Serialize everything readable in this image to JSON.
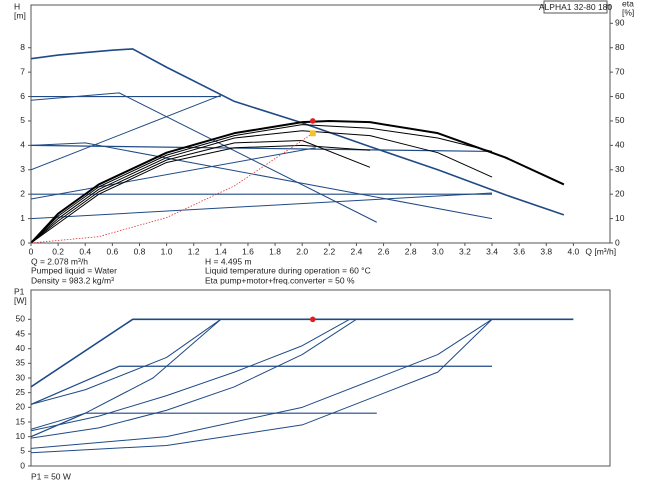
{
  "chart_data": [
    {
      "type": "line",
      "title": "ALPHA1 32-80 180",
      "ylabel": "H",
      "yunit": "[m]",
      "y2label": "eta",
      "y2unit": "[%]",
      "xlabel": "Q [m³/h]",
      "xlim": [
        0,
        4.27
      ],
      "ylim": [
        0,
        9.75
      ],
      "y2lim": [
        0,
        97.5
      ],
      "xticks": [
        0,
        0.2,
        0.4,
        0.6,
        0.8,
        {
          "value": 1,
          "label": "1.0"
        },
        1.2,
        1.4,
        1.6,
        1.8,
        {
          "value": 2,
          "label": "2.0"
        },
        2.2,
        2.4,
        2.6,
        2.8,
        {
          "value": 3,
          "label": "3.0"
        },
        3.2,
        3.4,
        3.6,
        3.8,
        {
          "value": 4,
          "label": "4.0"
        }
      ],
      "yticks": [
        0,
        1,
        2,
        3,
        4,
        5,
        6,
        7,
        8
      ],
      "y2ticks": [
        0,
        10,
        20,
        30,
        40,
        50,
        60,
        70,
        80,
        90
      ],
      "grid": false,
      "series": [
        {
          "color": "#1f4a86",
          "width": 1.6,
          "x": [
            0,
            0.2,
            0.4,
            0.6,
            0.75,
            1.0,
            1.5,
            2.0,
            2.5,
            3.0,
            3.5,
            3.93
          ],
          "values": [
            7.55,
            7.7,
            7.8,
            7.9,
            7.95,
            7.2,
            5.8,
            4.92,
            3.95,
            3.0,
            1.97,
            1.15
          ]
        },
        {
          "color": "#1f4a86",
          "width": 1.2,
          "x": [
            0,
            1.4
          ],
          "values": [
            6,
            6
          ]
        },
        {
          "color": "#1f4a86",
          "width": 1,
          "x": [
            0,
            0.65,
            2.55
          ],
          "values": [
            5.85,
            6.15,
            0.85
          ]
        },
        {
          "color": "#1f4a86",
          "width": 1,
          "x": [
            0,
            1.4
          ],
          "values": [
            3.0,
            6.05
          ]
        },
        {
          "color": "#1f4a86",
          "width": 1.2,
          "x": [
            0,
            3.4
          ],
          "values": [
            4.0,
            3.75
          ]
        },
        {
          "color": "#1f4a86",
          "width": 1,
          "x": [
            0,
            0.4,
            3.4
          ],
          "values": [
            4.0,
            4.1,
            1.0
          ]
        },
        {
          "color": "#1f4a86",
          "width": 1,
          "x": [
            0,
            2.1
          ],
          "values": [
            1.8,
            3.9
          ]
        },
        {
          "color": "#1f4a86",
          "width": 1.2,
          "x": [
            0,
            3.4
          ],
          "values": [
            2.0,
            2.0
          ]
        },
        {
          "color": "#1f4a86",
          "width": 1,
          "x": [
            0,
            3.4
          ],
          "values": [
            1.0,
            2.05
          ]
        },
        {
          "color": "#000000",
          "width": 2,
          "axis": "y2",
          "x": [
            0,
            0.2,
            0.5,
            1.0,
            1.5,
            2.0,
            2.2,
            2.5,
            3.0,
            3.5,
            3.93
          ],
          "values": [
            0,
            12,
            24,
            37,
            45,
            49.5,
            50,
            49.5,
            45,
            35,
            24
          ]
        },
        {
          "color": "#000000",
          "width": 1,
          "axis": "y2",
          "x": [
            0,
            0.2,
            0.5,
            1.0,
            1.5,
            2.0,
            2.5,
            3.0,
            3.4
          ],
          "values": [
            0,
            11,
            23,
            36,
            44,
            48.5,
            47,
            43,
            37.5
          ]
        },
        {
          "color": "#000000",
          "width": 1,
          "axis": "y2",
          "x": [
            0,
            0.2,
            0.5,
            1.0,
            1.5,
            2.0,
            2.5,
            3.0,
            3.4
          ],
          "values": [
            0,
            10,
            22,
            35,
            43,
            46,
            44,
            37,
            27
          ]
        },
        {
          "color": "#000000",
          "width": 1,
          "axis": "y2",
          "x": [
            0,
            0.2,
            0.5,
            1.0,
            1.5,
            2.0,
            2.5
          ],
          "values": [
            0,
            9,
            21,
            34,
            41,
            42,
            31
          ]
        },
        {
          "color": "#000000",
          "width": 1,
          "axis": "y2",
          "x": [
            0,
            0.2,
            0.5,
            1.0,
            1.5,
            2.0,
            2.5
          ],
          "values": [
            0,
            8,
            20,
            33,
            39,
            40,
            38
          ]
        },
        {
          "color": "#e03030",
          "width": 0.8,
          "dashed": true,
          "x": [
            0,
            0.5,
            1.0,
            1.5,
            2.078
          ],
          "values": [
            0,
            0.26,
            1.04,
            2.34,
            4.495
          ]
        }
      ],
      "markers": [
        {
          "shape": "circle",
          "color": "#e02020",
          "axis": "y2",
          "x": 2.078,
          "value": 50
        },
        {
          "shape": "square",
          "color": "#f2c230",
          "x": 2.078,
          "value": 4.495
        }
      ],
      "annotations": [
        "Q = 2.078 m³/h",
        "H = 4.495 m",
        "Pumped liquid = Water",
        "Liquid temperature during operation = 60 °C",
        "Density = 983.2 kg/m³",
        "Eta pump+motor+freq.converter = 50 %"
      ]
    },
    {
      "type": "line",
      "ylabel": "P1",
      "yunit": "[W]",
      "xlim": [
        0,
        4.27
      ],
      "ylim": [
        0,
        60
      ],
      "yticks": [
        0,
        5,
        10,
        15,
        20,
        25,
        30,
        35,
        40,
        45,
        50
      ],
      "grid": false,
      "series": [
        {
          "color": "#1f4a86",
          "width": 1.6,
          "x": [
            0,
            0.75,
            4.0
          ],
          "values": [
            27,
            50,
            50
          ]
        },
        {
          "color": "#1f4a86",
          "width": 1,
          "x": [
            0,
            0.4,
            1.0,
            1.4
          ],
          "values": [
            21,
            26,
            37,
            50
          ]
        },
        {
          "color": "#1f4a86",
          "width": 1,
          "x": [
            0,
            0.4,
            0.9,
            1.4
          ],
          "values": [
            12.5,
            18,
            30,
            50
          ]
        },
        {
          "color": "#1f4a86",
          "width": 1,
          "x": [
            0,
            0.5,
            1.0,
            1.5,
            2.0,
            2.35
          ],
          "values": [
            12,
            17,
            24,
            32,
            41,
            50
          ]
        },
        {
          "color": "#1f4a86",
          "width": 1,
          "x": [
            0,
            0.5,
            1.0,
            1.5,
            2.0,
            2.4
          ],
          "values": [
            9.5,
            13,
            19,
            27,
            38,
            50
          ]
        },
        {
          "color": "#1f4a86",
          "width": 1,
          "x": [
            0,
            1.0,
            2.0,
            3.0,
            3.4
          ],
          "values": [
            6,
            10,
            20,
            38,
            50
          ]
        },
        {
          "color": "#1f4a86",
          "width": 1,
          "x": [
            0,
            1.0,
            2.0,
            3.0,
            3.4
          ],
          "values": [
            4.5,
            7,
            14,
            32,
            50
          ]
        },
        {
          "color": "#1f4a86",
          "width": 1.2,
          "x": [
            0,
            0.65,
            3.4
          ],
          "values": [
            21,
            34,
            34
          ]
        },
        {
          "color": "#1f4a86",
          "width": 1.2,
          "x": [
            0,
            0.4,
            2.55
          ],
          "values": [
            10,
            18,
            18
          ]
        }
      ],
      "markers": [
        {
          "shape": "circle",
          "color": "#e02020",
          "x": 2.078,
          "value": 50
        }
      ],
      "annotations": [
        "P1 = 50 W"
      ]
    }
  ]
}
